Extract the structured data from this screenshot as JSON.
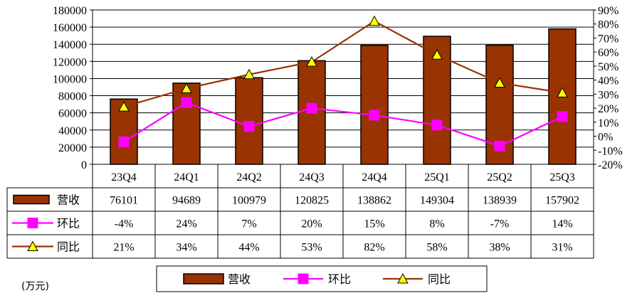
{
  "unit_label": "(万元)",
  "colors": {
    "bar": "#993300",
    "line_qoq": "#FF00FF",
    "line_yoy": "#993300",
    "marker_yoy_fill": "#FFFF00"
  },
  "chart_data": {
    "type": "bar",
    "categories": [
      "23Q4",
      "24Q1",
      "24Q2",
      "24Q3",
      "24Q4",
      "25Q1",
      "25Q2",
      "25Q3"
    ],
    "left_ylim": [
      0,
      180000
    ],
    "left_ticks": [
      0,
      20000,
      40000,
      60000,
      80000,
      100000,
      120000,
      140000,
      160000,
      180000
    ],
    "right_ylim": [
      -20,
      90
    ],
    "right_ticks": [
      -20,
      -10,
      0,
      10,
      20,
      30,
      40,
      50,
      60,
      70,
      80,
      90
    ],
    "grid": true,
    "legend_position": "bottom",
    "series": [
      {
        "name": "营收",
        "kind": "bar",
        "axis": "left",
        "values": [
          76101,
          94689,
          100979,
          120825,
          138862,
          149304,
          138939,
          157902
        ],
        "labels": [
          "76101",
          "94689",
          "100979",
          "120825",
          "138862",
          "149304",
          "138939",
          "157902"
        ]
      },
      {
        "name": "环比",
        "kind": "line",
        "axis": "right",
        "marker": "square",
        "values": [
          -4,
          24,
          7,
          20,
          15,
          8,
          -7,
          14
        ],
        "labels": [
          "-4%",
          "24%",
          "7%",
          "20%",
          "15%",
          "8%",
          "-7%",
          "14%"
        ]
      },
      {
        "name": "同比",
        "kind": "line",
        "axis": "right",
        "marker": "triangle",
        "values": [
          21,
          34,
          44,
          53,
          82,
          58,
          38,
          31
        ],
        "labels": [
          "21%",
          "34%",
          "44%",
          "53%",
          "82%",
          "58%",
          "38%",
          "31%"
        ]
      }
    ]
  }
}
